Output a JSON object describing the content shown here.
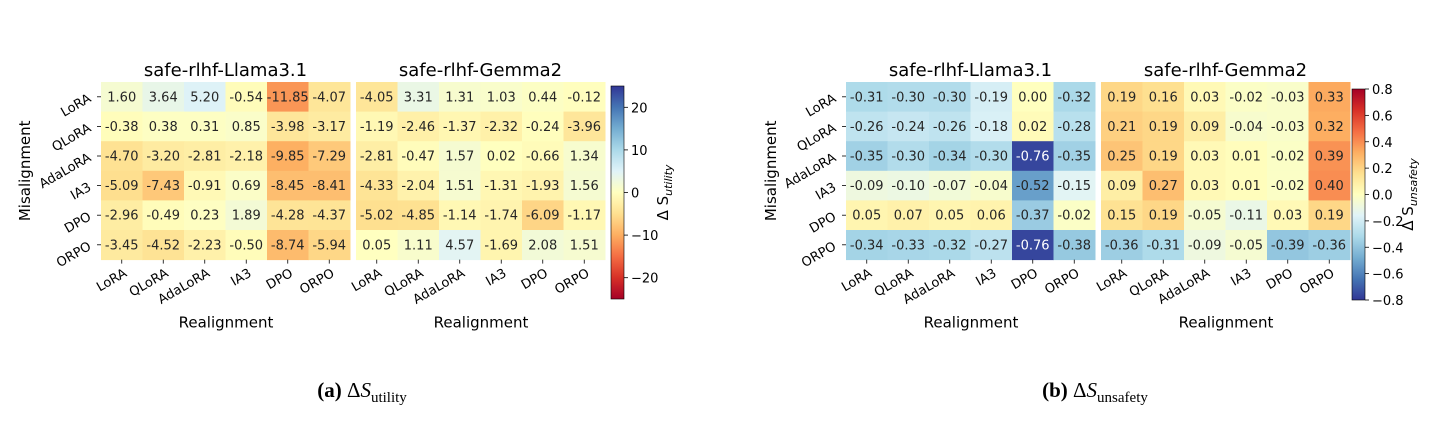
{
  "figures": [
    {
      "id": "a",
      "y_label": "Misalignment",
      "x_label": "Realignment",
      "colorbar_label": "Δ S_utility",
      "colorbar_ticks": [
        "20",
        "10",
        "0",
        "−10",
        "−20"
      ],
      "caption_tag": "(a)",
      "caption_delta": "Δ",
      "caption_symbol": "S",
      "caption_sub": "utility"
    },
    {
      "id": "b",
      "y_label": "Misalignment",
      "x_label": "Realignment",
      "colorbar_label": "Δ S_unsafety",
      "colorbar_ticks": [
        "0.8",
        "0.6",
        "0.4",
        "0.2",
        "0.0",
        "−0.2",
        "−0.4",
        "−0.6",
        "−0.8"
      ],
      "caption_tag": "(b)",
      "caption_delta": "Δ",
      "caption_symbol": "S",
      "caption_sub": "unsafety"
    }
  ],
  "chart_data": [
    {
      "type": "heatmap",
      "title": "safe-rlhf-Llama3.1",
      "colormap": "RdYlBu",
      "vrange": [
        -25,
        25
      ],
      "xlabel": "Realignment",
      "ylabel": "Misalignment",
      "x_categories": [
        "LoRA",
        "QLoRA",
        "AdaLoRA",
        "IA3",
        "DPO",
        "ORPO"
      ],
      "y_categories": [
        "LoRA",
        "QLoRA",
        "AdaLoRA",
        "IA3",
        "DPO",
        "ORPO"
      ],
      "values": [
        [
          1.6,
          3.64,
          5.2,
          -0.54,
          -11.85,
          -4.07
        ],
        [
          -0.38,
          0.38,
          0.31,
          0.85,
          -3.98,
          -3.17
        ],
        [
          -4.7,
          -3.2,
          -2.81,
          -2.18,
          -9.85,
          -7.29
        ],
        [
          -5.09,
          -7.43,
          -0.91,
          0.69,
          -8.45,
          -8.41
        ],
        [
          -2.96,
          -0.49,
          0.23,
          1.89,
          -4.28,
          -4.37
        ],
        [
          -3.45,
          -4.52,
          -2.23,
          -0.5,
          -8.74,
          -5.94
        ]
      ]
    },
    {
      "type": "heatmap",
      "title": "safe-rlhf-Gemma2",
      "colormap": "RdYlBu",
      "vrange": [
        -25,
        25
      ],
      "xlabel": "Realignment",
      "x_categories": [
        "LoRA",
        "QLoRA",
        "AdaLoRA",
        "IA3",
        "DPO",
        "ORPO"
      ],
      "y_categories": [
        "LoRA",
        "QLoRA",
        "AdaLoRA",
        "IA3",
        "DPO",
        "ORPO"
      ],
      "values": [
        [
          -4.05,
          3.31,
          1.31,
          1.03,
          0.44,
          -0.12
        ],
        [
          -1.19,
          -2.46,
          -1.37,
          -2.32,
          -0.24,
          -3.96
        ],
        [
          -2.81,
          -0.47,
          1.57,
          0.02,
          -0.66,
          1.34
        ],
        [
          -4.33,
          -2.04,
          1.51,
          -1.31,
          -1.93,
          1.56
        ],
        [
          -5.02,
          -4.85,
          -1.14,
          -1.74,
          -6.09,
          -1.17
        ],
        [
          0.05,
          1.11,
          4.57,
          -1.69,
          2.08,
          1.51
        ]
      ]
    },
    {
      "type": "heatmap",
      "title": "safe-rlhf-Llama3.1",
      "colormap": "RdYlBu_r",
      "vrange": [
        -0.8,
        0.8
      ],
      "xlabel": "Realignment",
      "ylabel": "Misalignment",
      "x_categories": [
        "LoRA",
        "QLoRA",
        "AdaLoRA",
        "IA3",
        "DPO",
        "ORPO"
      ],
      "y_categories": [
        "LoRA",
        "QLoRA",
        "AdaLoRA",
        "IA3",
        "DPO",
        "ORPO"
      ],
      "values": [
        [
          -0.31,
          -0.3,
          -0.3,
          -0.19,
          0.0,
          -0.32
        ],
        [
          -0.26,
          -0.24,
          -0.26,
          -0.18,
          0.02,
          -0.28
        ],
        [
          -0.35,
          -0.3,
          -0.34,
          -0.3,
          -0.76,
          -0.35
        ],
        [
          -0.09,
          -0.1,
          -0.07,
          -0.04,
          -0.52,
          -0.15
        ],
        [
          0.05,
          0.07,
          0.05,
          0.06,
          -0.37,
          -0.02
        ],
        [
          -0.34,
          -0.33,
          -0.32,
          -0.27,
          -0.76,
          -0.38
        ]
      ]
    },
    {
      "type": "heatmap",
      "title": "safe-rlhf-Gemma2",
      "colormap": "RdYlBu_r",
      "vrange": [
        -0.8,
        0.8
      ],
      "xlabel": "Realignment",
      "x_categories": [
        "LoRA",
        "QLoRA",
        "AdaLoRA",
        "IA3",
        "DPO",
        "ORPO"
      ],
      "y_categories": [
        "LoRA",
        "QLoRA",
        "AdaLoRA",
        "IA3",
        "DPO",
        "ORPO"
      ],
      "values": [
        [
          0.19,
          0.16,
          0.03,
          -0.02,
          -0.03,
          0.33
        ],
        [
          0.21,
          0.19,
          0.09,
          -0.04,
          -0.03,
          0.32
        ],
        [
          0.25,
          0.19,
          0.03,
          0.01,
          -0.02,
          0.39
        ],
        [
          0.09,
          0.27,
          0.03,
          0.01,
          -0.02,
          0.4
        ],
        [
          0.15,
          0.19,
          -0.05,
          -0.11,
          0.03,
          0.19
        ],
        [
          -0.36,
          -0.31,
          -0.09,
          -0.05,
          -0.39,
          -0.36
        ]
      ]
    }
  ]
}
